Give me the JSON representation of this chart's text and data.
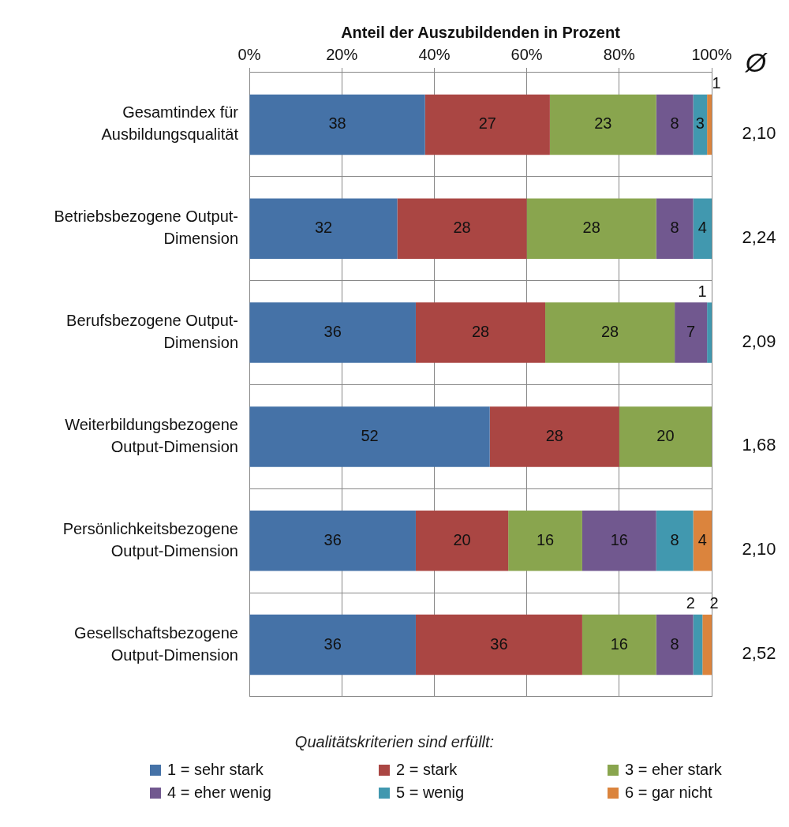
{
  "chart_data": {
    "type": "bar",
    "orientation": "horizontal",
    "stacked": true,
    "xlabel": "Anteil der Auszubildenden in Prozent",
    "categories": [
      "Gesamtindex für Ausbildungsqualität",
      "Betriebsbezogene Output-Dimension",
      "Berufsbezogene Output-Dimension",
      "Weiterbildungsbezogene Output-Dimension",
      "Persönlichkeitsbezogene Output-Dimension",
      "Gesellschaftsbezogene Output-Dimension"
    ],
    "series": [
      {
        "name": "1 = sehr stark",
        "color": "#4572a7",
        "values": [
          38,
          32,
          36,
          52,
          36,
          36
        ]
      },
      {
        "name": "2 = stark",
        "color": "#aa4643",
        "values": [
          27,
          28,
          28,
          28,
          20,
          36
        ]
      },
      {
        "name": "3 = eher stark",
        "color": "#89a54e",
        "values": [
          23,
          28,
          28,
          20,
          16,
          16
        ]
      },
      {
        "name": "4 = eher wenig",
        "color": "#71588f",
        "values": [
          8,
          8,
          7,
          null,
          16,
          8
        ]
      },
      {
        "name": "5 = wenig",
        "color": "#4198af",
        "values": [
          3,
          4,
          1,
          null,
          8,
          2
        ]
      },
      {
        "name": "6 = gar nicht",
        "color": "#db843d",
        "values": [
          1,
          null,
          null,
          null,
          4,
          2
        ]
      }
    ],
    "xlim": [
      0,
      100
    ],
    "xticks": [
      {
        "value": 0,
        "label": "0%"
      },
      {
        "value": 20,
        "label": "20%"
      },
      {
        "value": 40,
        "label": "40%"
      },
      {
        "value": 60,
        "label": "60%"
      },
      {
        "value": 80,
        "label": "80%"
      },
      {
        "value": 100,
        "label": "100%"
      }
    ],
    "grid": true,
    "data_labels": true,
    "legend": "bottom",
    "legend_title": "Qualitätskriterien sind erfüllt:",
    "annotations": [
      "Ø",
      "2,10",
      "2,24",
      "2,09",
      "1,68",
      "2,10",
      "2,52"
    ]
  }
}
